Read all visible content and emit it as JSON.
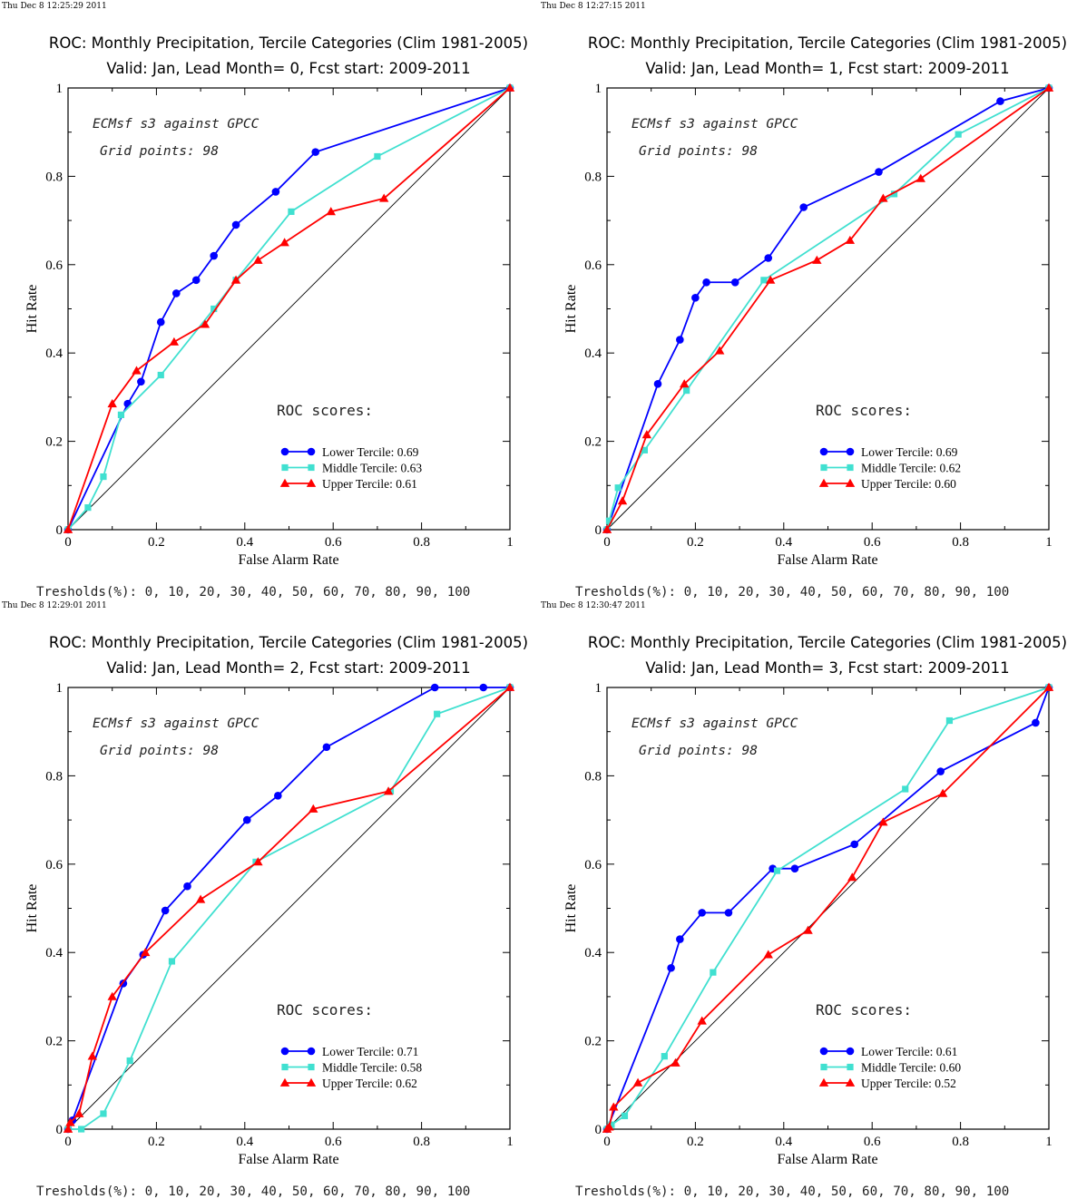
{
  "panels": [
    {
      "timestamp": "Thu Dec  8 12:25:29 2011",
      "title": "ROC: Monthly Precipitation, Tercile Categories (Clim 1981-2005)",
      "subtitle": "Valid: Jan, Lead Month= 0, Fcst start: 2009-2011",
      "annotation_1": "ECMsf s3 against GPCC",
      "annotation_2": "Grid points:   98",
      "roc_heading": "ROC scores:",
      "thresholds": "Tresholds(%): 0, 10, 20, 30, 40, 50, 60, 70, 80, 90, 100",
      "xlabel": "False Alarm Rate",
      "ylabel": "Hit Rate",
      "chart_data": {
        "type": "line",
        "xlim": [
          0,
          1
        ],
        "ylim": [
          0,
          1
        ],
        "x_ticks": [
          "0",
          "0.2",
          "0.4",
          "0.6",
          "0.8",
          "1"
        ],
        "y_ticks": [
          "0",
          "0.2",
          "0.4",
          "0.6",
          "0.8",
          "1"
        ],
        "series": [
          {
            "name": "Lower Tercile: 0.69",
            "color": "#0000ff",
            "marker": "circle",
            "x": [
              0,
              0.135,
              0.165,
              0.21,
              0.245,
              0.29,
              0.33,
              0.38,
              0.47,
              0.56,
              1
            ],
            "y": [
              0,
              0.285,
              0.335,
              0.47,
              0.535,
              0.565,
              0.62,
              0.69,
              0.765,
              0.855,
              1
            ]
          },
          {
            "name": "Middle Tercile: 0.63",
            "color": "#40e0d0",
            "marker": "square",
            "x": [
              0,
              0.045,
              0.08,
              0.12,
              0.21,
              0.33,
              0.38,
              0.505,
              0.7,
              1
            ],
            "y": [
              0,
              0.05,
              0.12,
              0.26,
              0.35,
              0.5,
              0.565,
              0.72,
              0.845,
              1
            ]
          },
          {
            "name": "Upper Tercile: 0.61",
            "color": "#ff0000",
            "marker": "triangle",
            "x": [
              0,
              0.1,
              0.155,
              0.24,
              0.31,
              0.38,
              0.43,
              0.49,
              0.595,
              0.715,
              1
            ],
            "y": [
              0,
              0.285,
              0.36,
              0.425,
              0.465,
              0.565,
              0.61,
              0.65,
              0.72,
              0.75,
              1
            ]
          }
        ]
      }
    },
    {
      "timestamp": "Thu Dec  8 12:27:15 2011",
      "title": "ROC: Monthly Precipitation, Tercile Categories (Clim 1981-2005)",
      "subtitle": "Valid: Jan, Lead Month= 1, Fcst start: 2009-2011",
      "annotation_1": "ECMsf s3 against GPCC",
      "annotation_2": "Grid points:   98",
      "roc_heading": "ROC scores:",
      "thresholds": "Tresholds(%): 0, 10, 20, 30, 40, 50, 60, 70, 80, 90, 100",
      "xlabel": "False Alarm Rate",
      "ylabel": "Hit Rate",
      "chart_data": {
        "type": "line",
        "xlim": [
          0,
          1
        ],
        "ylim": [
          0,
          1
        ],
        "x_ticks": [
          "0",
          "0.2",
          "0.4",
          "0.6",
          "0.8",
          "1"
        ],
        "y_ticks": [
          "0",
          "0.2",
          "0.4",
          "0.6",
          "0.8",
          "1"
        ],
        "series": [
          {
            "name": "Lower Tercile: 0.69",
            "color": "#0000ff",
            "marker": "circle",
            "x": [
              0,
              0.115,
              0.165,
              0.2,
              0.225,
              0.29,
              0.365,
              0.445,
              0.615,
              0.89,
              1
            ],
            "y": [
              0,
              0.33,
              0.43,
              0.525,
              0.56,
              0.56,
              0.615,
              0.73,
              0.81,
              0.97,
              1
            ]
          },
          {
            "name": "Middle Tercile: 0.62",
            "color": "#40e0d0",
            "marker": "square",
            "x": [
              0,
              0.005,
              0.025,
              0.085,
              0.18,
              0.355,
              0.65,
              0.795,
              1
            ],
            "y": [
              0,
              0.02,
              0.095,
              0.18,
              0.315,
              0.565,
              0.76,
              0.895,
              1
            ]
          },
          {
            "name": "Upper Tercile: 0.60",
            "color": "#ff0000",
            "marker": "triangle",
            "x": [
              0,
              0.035,
              0.09,
              0.175,
              0.255,
              0.37,
              0.475,
              0.55,
              0.625,
              0.71,
              1
            ],
            "y": [
              0,
              0.065,
              0.215,
              0.33,
              0.405,
              0.565,
              0.61,
              0.655,
              0.75,
              0.795,
              1
            ]
          }
        ]
      }
    },
    {
      "timestamp": "Thu Dec  8 12:29:01 2011",
      "title": "ROC: Monthly Precipitation, Tercile Categories (Clim 1981-2005)",
      "subtitle": "Valid: Jan, Lead Month= 2, Fcst start: 2009-2011",
      "annotation_1": "ECMsf s3 against GPCC",
      "annotation_2": "Grid points:   98",
      "roc_heading": "ROC scores:",
      "thresholds": "Tresholds(%): 0, 10, 20, 30, 40, 50, 60, 70, 80, 90, 100",
      "xlabel": "False Alarm Rate",
      "ylabel": "Hit Rate",
      "chart_data": {
        "type": "line",
        "xlim": [
          0,
          1
        ],
        "ylim": [
          0,
          1
        ],
        "x_ticks": [
          "0",
          "0.2",
          "0.4",
          "0.6",
          "0.8",
          "1"
        ],
        "y_ticks": [
          "0",
          "0.2",
          "0.4",
          "0.6",
          "0.8",
          "1"
        ],
        "series": [
          {
            "name": "Lower Tercile: 0.71",
            "color": "#0000ff",
            "marker": "circle",
            "x": [
              0,
              0.01,
              0.125,
              0.17,
              0.22,
              0.27,
              0.405,
              0.475,
              0.585,
              0.83,
              0.94,
              1
            ],
            "y": [
              0,
              0.02,
              0.33,
              0.395,
              0.495,
              0.55,
              0.7,
              0.755,
              0.865,
              1,
              1,
              1
            ]
          },
          {
            "name": "Middle Tercile: 0.58",
            "color": "#40e0d0",
            "marker": "square",
            "x": [
              0,
              0.03,
              0.08,
              0.14,
              0.235,
              0.425,
              0.73,
              0.835,
              1
            ],
            "y": [
              0,
              0,
              0.035,
              0.155,
              0.38,
              0.605,
              0.765,
              0.94,
              1
            ]
          },
          {
            "name": "Upper Tercile: 0.62",
            "color": "#ff0000",
            "marker": "triangle",
            "x": [
              0,
              0.005,
              0.025,
              0.055,
              0.1,
              0.175,
              0.3,
              0.43,
              0.555,
              0.725,
              1
            ],
            "y": [
              0,
              0.015,
              0.035,
              0.165,
              0.3,
              0.4,
              0.52,
              0.605,
              0.725,
              0.765,
              1
            ]
          }
        ]
      }
    },
    {
      "timestamp": "Thu Dec  8 12:30:47 2011",
      "title": "ROC: Monthly Precipitation, Tercile Categories (Clim 1981-2005)",
      "subtitle": "Valid: Jan, Lead Month= 3, Fcst start: 2009-2011",
      "annotation_1": "ECMsf s3 against GPCC",
      "annotation_2": "Grid points:   98",
      "roc_heading": "ROC scores:",
      "thresholds": "Tresholds(%): 0, 10, 20, 30, 40, 50, 60, 70, 80, 90, 100",
      "xlabel": "False Alarm Rate",
      "ylabel": "Hit Rate",
      "chart_data": {
        "type": "line",
        "xlim": [
          0,
          1
        ],
        "ylim": [
          0,
          1
        ],
        "x_ticks": [
          "0",
          "0.2",
          "0.4",
          "0.6",
          "0.8",
          "1"
        ],
        "y_ticks": [
          "0",
          "0.2",
          "0.4",
          "0.6",
          "0.8",
          "1"
        ],
        "series": [
          {
            "name": "Lower Tercile: 0.61",
            "color": "#0000ff",
            "marker": "circle",
            "x": [
              0,
              0.145,
              0.165,
              0.215,
              0.275,
              0.375,
              0.425,
              0.56,
              0.755,
              0.97,
              1
            ],
            "y": [
              0,
              0.365,
              0.43,
              0.49,
              0.49,
              0.59,
              0.59,
              0.645,
              0.81,
              0.92,
              1
            ]
          },
          {
            "name": "Middle Tercile: 0.60",
            "color": "#40e0d0",
            "marker": "square",
            "x": [
              0,
              0.01,
              0.04,
              0.13,
              0.24,
              0.385,
              0.675,
              0.775,
              1
            ],
            "y": [
              0,
              0.01,
              0.03,
              0.165,
              0.355,
              0.585,
              0.77,
              0.925,
              1
            ]
          },
          {
            "name": "Upper Tercile: 0.52",
            "color": "#ff0000",
            "marker": "triangle",
            "x": [
              0,
              0.005,
              0.015,
              0.07,
              0.155,
              0.215,
              0.365,
              0.455,
              0.555,
              0.625,
              0.76,
              1
            ],
            "y": [
              0,
              0.005,
              0.05,
              0.105,
              0.15,
              0.245,
              0.395,
              0.45,
              0.57,
              0.695,
              0.76,
              1
            ]
          }
        ]
      }
    }
  ]
}
